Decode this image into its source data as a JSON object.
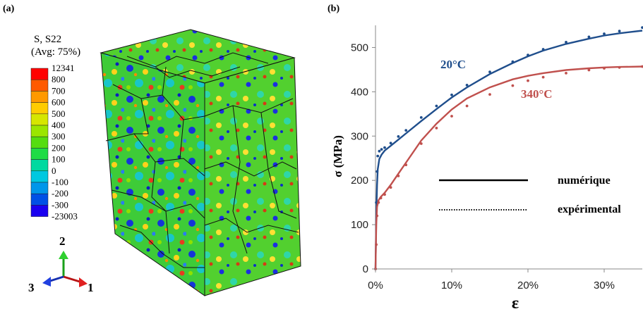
{
  "panel_a": {
    "label": "(a)",
    "colorbar": {
      "title_lines": [
        "S, S22",
        "(Avg: 75%)"
      ],
      "ticks": [
        "12341",
        "800",
        "700",
        "600",
        "500",
        "400",
        "300",
        "200",
        "100",
        "0",
        "-100",
        "-200",
        "-300",
        "-23003"
      ],
      "colors": [
        "#ff0000",
        "#ff5a00",
        "#ff9900",
        "#ffcc00",
        "#d6e600",
        "#9be600",
        "#55dd10",
        "#1fdc45",
        "#00d9a0",
        "#00c8e0",
        "#0096ea",
        "#0050e6",
        "#1a00f0"
      ]
    },
    "triad": {
      "axis_y": "2",
      "axis_z": "3",
      "axis_x": "1"
    }
  },
  "chart_data": {
    "type": "line",
    "label": "(b)",
    "xlabel": "ε",
    "ylabel": "σ (MPa)",
    "xlim": [
      0,
      0.35
    ],
    "ylim": [
      0,
      550
    ],
    "xticks": [
      0,
      0.1,
      0.2,
      0.3
    ],
    "xtick_labels": [
      "0%",
      "10%",
      "20%",
      "30%"
    ],
    "yticks": [
      0,
      100,
      200,
      300,
      400,
      500
    ],
    "ytick_labels": [
      "0",
      "100",
      "200",
      "300",
      "400",
      "500"
    ],
    "legend": [
      {
        "text": "numérique",
        "style": "solid"
      },
      {
        "text": "expérimental",
        "style": "dotted"
      }
    ],
    "series": [
      {
        "name": "20°C",
        "color": "#1f4e8c",
        "numerical": {
          "x": [
            0,
            0.001,
            0.002,
            0.003,
            0.005,
            0.008,
            0.012,
            0.02,
            0.03,
            0.04,
            0.06,
            0.08,
            0.1,
            0.12,
            0.15,
            0.18,
            0.2,
            0.22,
            0.25,
            0.28,
            0.3,
            0.32,
            0.35
          ],
          "y": [
            0,
            120,
            190,
            225,
            248,
            258,
            267,
            278,
            292,
            306,
            334,
            361,
            387,
            410,
            440,
            465,
            480,
            493,
            508,
            520,
            527,
            532,
            538
          ]
        },
        "experimental": {
          "x": [
            0,
            0.001,
            0.002,
            0.003,
            0.005,
            0.008,
            0.012,
            0.02,
            0.03,
            0.04,
            0.06,
            0.08,
            0.1,
            0.12,
            0.15,
            0.18,
            0.2,
            0.22,
            0.25,
            0.28,
            0.3,
            0.32,
            0.35
          ],
          "y": [
            0,
            150,
            220,
            255,
            266,
            270,
            274,
            284,
            299,
            313,
            342,
            368,
            393,
            415,
            445,
            468,
            483,
            496,
            512,
            524,
            531,
            537,
            545
          ]
        }
      },
      {
        "name": "340°C",
        "color": "#c0504d",
        "numerical": {
          "x": [
            0,
            0.001,
            0.002,
            0.004,
            0.007,
            0.012,
            0.02,
            0.03,
            0.04,
            0.06,
            0.08,
            0.1,
            0.12,
            0.15,
            0.18,
            0.2,
            0.22,
            0.25,
            0.28,
            0.3,
            0.32,
            0.35
          ],
          "y": [
            0,
            100,
            140,
            155,
            163,
            172,
            190,
            215,
            240,
            290,
            328,
            360,
            385,
            410,
            428,
            436,
            442,
            449,
            453,
            455,
            456,
            457
          ]
        },
        "experimental": {
          "x": [
            0,
            0.001,
            0.002,
            0.004,
            0.007,
            0.012,
            0.02,
            0.03,
            0.04,
            0.06,
            0.08,
            0.1,
            0.12,
            0.15,
            0.18,
            0.2,
            0.22,
            0.25,
            0.28,
            0.3,
            0.32,
            0.35
          ],
          "y": [
            0,
            55,
            120,
            150,
            160,
            168,
            184,
            210,
            235,
            283,
            318,
            345,
            368,
            394,
            414,
            425,
            433,
            442,
            449,
            453,
            455,
            457
          ]
        }
      }
    ]
  }
}
